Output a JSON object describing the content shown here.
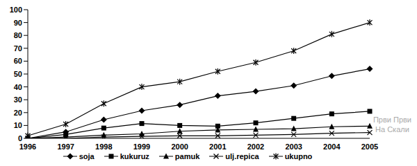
{
  "chart_data": {
    "type": "line",
    "categories": [
      "1996",
      "1997",
      "1998",
      "1999",
      "2000",
      "2001",
      "2002",
      "2003",
      "2004",
      "2005"
    ],
    "series": [
      {
        "name": "soja",
        "color": "#000000",
        "marker": "diamond",
        "values": [
          0,
          5,
          14.5,
          21.5,
          26,
          33,
          36.5,
          41,
          48.5,
          54
        ]
      },
      {
        "name": "kukuruz",
        "color": "#000000",
        "marker": "square",
        "values": [
          0,
          3,
          8,
          11.5,
          10,
          9.5,
          12,
          15.5,
          19,
          21
        ]
      },
      {
        "name": "pamuk",
        "color": "#000000",
        "marker": "triangle",
        "values": [
          0,
          1,
          2.5,
          3.5,
          5.5,
          6.5,
          7,
          7.5,
          9,
          9.5
        ]
      },
      {
        "name": "ulj.repica",
        "color": "#000000",
        "marker": "cross",
        "values": [
          0,
          0,
          1,
          1.5,
          2,
          2,
          2.5,
          3,
          4,
          4.5
        ]
      },
      {
        "name": "ukupno",
        "color": "#000000",
        "marker": "star",
        "values": [
          2,
          11,
          27,
          40,
          44,
          52,
          59,
          68,
          81,
          90
        ]
      }
    ],
    "ylim": [
      0,
      100
    ],
    "yticks": [
      0,
      10,
      20,
      30,
      40,
      50,
      60,
      70,
      80,
      90,
      100
    ],
    "grid": false,
    "legend": "bottom",
    "annotations": [
      "Први Први",
      "На Скали"
    ]
  }
}
